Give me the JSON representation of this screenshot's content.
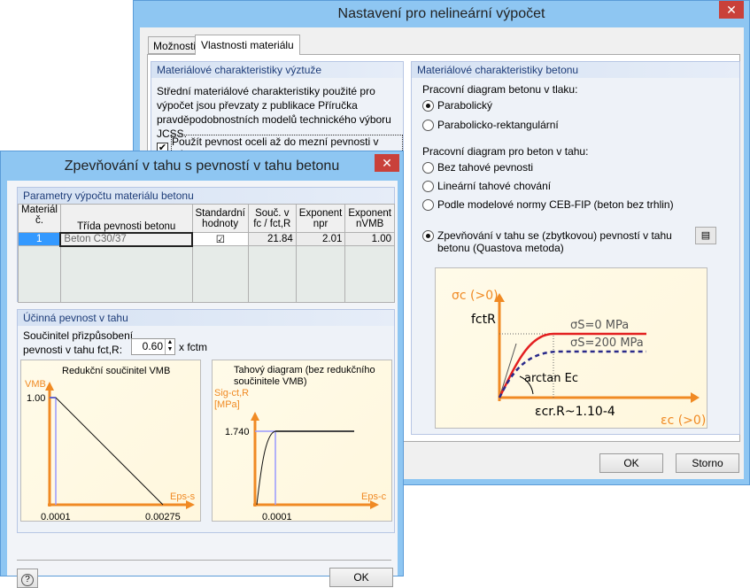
{
  "main": {
    "title": "Nastavení pro nelineární výpočet",
    "close": "✕",
    "tabs": [
      {
        "label": "Možnosti"
      },
      {
        "label": "Vlastnosti materiálu"
      }
    ],
    "steel_group": {
      "title": "Materiálové charakteristiky výztuže",
      "text": "Střední materiálové charakteristiky použité pro výpočet jsou převzaty z publikace Příručka pravděpodobnostních modelů technického výboru JCSS.",
      "checkbox": "Použít pevnost oceli až do mezní pevnosti v tahu",
      "checked": true
    },
    "concrete_group": {
      "title": "Materiálové charakteristiky betonu",
      "compression_label": "Pracovní diagram betonu v tlaku:",
      "compression_options": [
        {
          "label": "Parabolický",
          "selected": true
        },
        {
          "label": "Parabolicko-rektangulární",
          "selected": false
        }
      ],
      "tension_label": "Pracovní diagram pro beton v tahu:",
      "tension_options": [
        {
          "label": "Bez tahové pevnosti",
          "selected": false
        },
        {
          "label": "Lineární tahové chování",
          "selected": false
        },
        {
          "label": "Podle modelové normy CEB-FIP (beton bez trhlin)",
          "selected": false
        },
        {
          "label": "Zpevňování v tahu se (zbytkovou) pevností v tahu betonu (Quastova metoda)",
          "selected": true
        }
      ],
      "diagram": {
        "y_axis": "σc (>0)",
        "fctr": "fctR",
        "s0": "σS=0 MPa",
        "s200": "σS=200 MPa",
        "arctan": "arctan Ec",
        "eps_cr": "εcr.R~1.10-4",
        "x_axis": "εc (>0)"
      }
    },
    "ok": "OK",
    "cancel": "Storno"
  },
  "dialog": {
    "title": "Zpevňování v tahu s pevností v tahu betonu",
    "close": "✕",
    "params_group": {
      "title": "Parametry výpočtu materiálu betonu",
      "headers": [
        "Materiál č.",
        "Třída pevnosti betonu",
        "Standardní hodnoty",
        "Souč. v fc / fct,R",
        "Exponent npr",
        "Exponent nVMB"
      ],
      "rows": [
        {
          "no": "1",
          "class": "Beton C30/37",
          "standard": true,
          "coef": "21.84",
          "npr": "2.01",
          "nvmb": "1.00"
        }
      ]
    },
    "eff_group": {
      "title": "Účinná pevnost v tahu",
      "label1": "Součinitel přizpůsobení",
      "label2": "pevnosti v tahu fct,R:",
      "value": "0.60",
      "suffix": "x fctm"
    },
    "chart_vmb": {
      "title": "Redukční součinitel VMB",
      "ylabel": "VMB",
      "y_tick": "1.00",
      "xlabel": "Eps-s",
      "x_ticks": [
        "0.0001",
        "0.00275"
      ]
    },
    "chart_tension": {
      "title": "Tahový diagram (bez redukčního součinitele VMB)",
      "ylabel1": "Sig-ct,R",
      "ylabel2": "[MPa]",
      "y_tick": "1.740",
      "xlabel": "Eps-c",
      "x_tick": "0.0001"
    },
    "help": "?",
    "ok": "OK"
  },
  "colors": {
    "accent": "#f08a24",
    "frame": "#8ec6f2",
    "close": "#c9413a"
  }
}
